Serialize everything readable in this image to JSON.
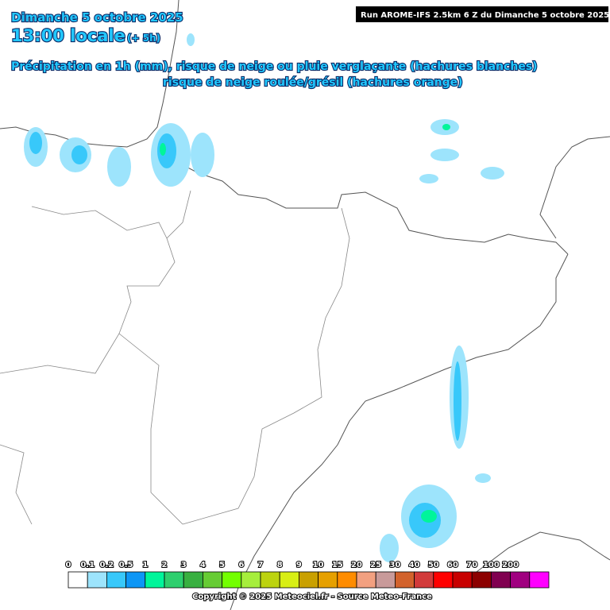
{
  "header": {
    "date": "Dimanche 5 octobre 2025",
    "time": "13:00 locale",
    "lead": "(+ 5h)",
    "line1": "Précipitation en 1h (mm), risque de neige ou pluie verglaçante (hachures blanches)",
    "line2": "risque de neige roulée/grésil (hachures orange)",
    "run": "Run AROME-IFS 2.5km 6 Z du Dimanche 5 octobre 2025"
  },
  "legend": [
    {
      "label": "0",
      "color": "#ffffff"
    },
    {
      "label": "0.1",
      "color": "#9de4fc"
    },
    {
      "label": "0.2",
      "color": "#38c8fa"
    },
    {
      "label": "0.5",
      "color": "#0d96f5"
    },
    {
      "label": "1",
      "color": "#00f59a"
    },
    {
      "label": "2",
      "color": "#2ecf6e"
    },
    {
      "label": "3",
      "color": "#38b040"
    },
    {
      "label": "4",
      "color": "#66cc33"
    },
    {
      "label": "5",
      "color": "#73ff00"
    },
    {
      "label": "6",
      "color": "#a6ee3c"
    },
    {
      "label": "7",
      "color": "#bcd30f"
    },
    {
      "label": "8",
      "color": "#d8ee14"
    },
    {
      "label": "9",
      "color": "#c9a000"
    },
    {
      "label": "10",
      "color": "#e6a000"
    },
    {
      "label": "15",
      "color": "#ff8c00"
    },
    {
      "label": "20",
      "color": "#f2a080"
    },
    {
      "label": "25",
      "color": "#c89a9a"
    },
    {
      "label": "30",
      "color": "#d2622c"
    },
    {
      "label": "40",
      "color": "#d23a3a"
    },
    {
      "label": "50",
      "color": "#ff0000"
    },
    {
      "label": "60",
      "color": "#c80000"
    },
    {
      "label": "70",
      "color": "#8c0000"
    },
    {
      "label": "100",
      "color": "#800050"
    },
    {
      "label": "200",
      "color": "#a00080"
    }
  ],
  "legend_end": {
    "color": "#ff00ff"
  },
  "footer": {
    "copyright": "Copyright © 2025 Meteociel.fr - Source Meteo-France"
  }
}
